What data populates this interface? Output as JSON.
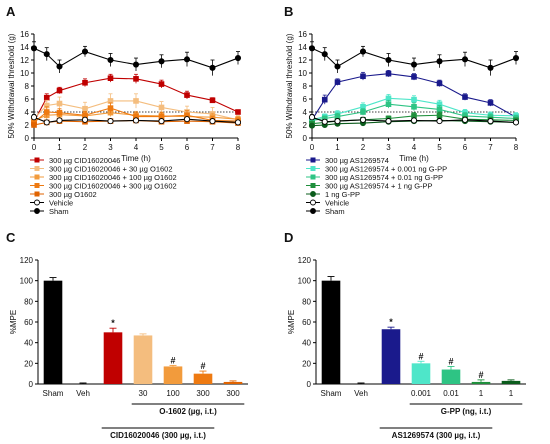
{
  "panels": {
    "A": {
      "letter": "A"
    },
    "B": {
      "letter": "B"
    },
    "C": {
      "letter": "C"
    },
    "D": {
      "letter": "D"
    }
  },
  "chart_data": [
    {
      "id": "A",
      "type": "line",
      "xlabel": "Time (h)",
      "ylabel": "50% Withdrawal threshold (g)",
      "xlim": [
        0,
        8
      ],
      "ylim": [
        0,
        16
      ],
      "xticks": [
        0,
        1,
        2,
        3,
        4,
        5,
        6,
        7,
        8
      ],
      "yticks": [
        0,
        2,
        4,
        6,
        8,
        10,
        12,
        14,
        16
      ],
      "dotted_line_y": 4,
      "x": [
        0,
        0.5,
        1,
        2,
        3,
        4,
        5,
        6,
        7,
        8
      ],
      "series": [
        {
          "name": "300 µg CID16020046",
          "color": "#c00000",
          "marker": "square",
          "filled": true,
          "values": [
            2.5,
            6.2,
            7.3,
            8.5,
            9.2,
            9.1,
            8.3,
            6.6,
            5.8,
            4.0
          ],
          "err": [
            0.4,
            0.6,
            0.5,
            0.6,
            0.6,
            0.7,
            0.6,
            0.6,
            0.4,
            0.3
          ]
        },
        {
          "name": "300 µg CID16020046 + 30 µg O1602",
          "color": "#f4bd7e",
          "marker": "square",
          "filled": true,
          "values": [
            3.0,
            5.0,
            5.3,
            4.5,
            5.7,
            5.7,
            4.7,
            4.0,
            3.7,
            2.8
          ],
          "err": [
            0.5,
            0.8,
            1.0,
            1.0,
            1.1,
            1.1,
            0.9,
            0.9,
            1.0,
            0.6
          ]
        },
        {
          "name": "300 µg CID16020046 + 100 µg O1602",
          "color": "#f29b3c",
          "marker": "square",
          "filled": true,
          "values": [
            2.7,
            3.5,
            3.6,
            3.4,
            3.9,
            3.5,
            3.4,
            3.3,
            3.2,
            2.9
          ],
          "err": [
            0.5,
            0.6,
            0.5,
            0.6,
            0.6,
            0.6,
            0.6,
            0.5,
            0.6,
            0.5
          ]
        },
        {
          "name": "300 µg CID16020046 + 300 µg O1602",
          "color": "#ee7a11",
          "marker": "square",
          "filled": true,
          "values": [
            2.4,
            4.0,
            3.9,
            3.5,
            4.6,
            3.3,
            3.3,
            3.5,
            2.7,
            2.6
          ],
          "err": [
            0.4,
            0.8,
            0.6,
            0.6,
            0.8,
            0.6,
            0.6,
            0.7,
            0.6,
            0.5
          ]
        },
        {
          "name": "300 µg O1602",
          "color": "#e06300",
          "marker": "square",
          "filled": true,
          "values": [
            2.0,
            2.4,
            2.6,
            2.5,
            2.6,
            2.7,
            2.5,
            2.6,
            2.5,
            2.3
          ],
          "err": [
            0.3,
            0.3,
            0.3,
            0.3,
            0.3,
            0.3,
            0.3,
            0.3,
            0.3,
            0.3
          ]
        },
        {
          "name": "Vehicle",
          "color": "#000000",
          "marker": "circle",
          "filled": false,
          "values": [
            3.2,
            2.4,
            2.7,
            2.8,
            2.6,
            2.7,
            2.6,
            2.9,
            2.6,
            2.4
          ],
          "err": [
            0.4,
            0.3,
            0.3,
            0.3,
            0.3,
            0.3,
            0.3,
            0.3,
            0.3,
            0.3
          ]
        },
        {
          "name": "Sham",
          "color": "#000000",
          "marker": "circle",
          "filled": true,
          "values": [
            13.8,
            12.9,
            11.0,
            13.3,
            12.0,
            11.3,
            11.8,
            12.1,
            10.8,
            12.3
          ],
          "err": [
            1.0,
            1.0,
            1.0,
            0.8,
            1.0,
            1.0,
            1.0,
            1.1,
            1.2,
            1.0
          ]
        }
      ]
    },
    {
      "id": "B",
      "type": "line",
      "xlabel": "Time (h)",
      "ylabel": "50% Withdrawal threshold (g)",
      "xlim": [
        0,
        8
      ],
      "ylim": [
        0,
        16
      ],
      "xticks": [
        0,
        1,
        2,
        3,
        4,
        5,
        6,
        7,
        8
      ],
      "yticks": [
        0,
        2,
        4,
        6,
        8,
        10,
        12,
        14,
        16
      ],
      "dotted_line_y": 4,
      "x": [
        0,
        0.5,
        1,
        2,
        3,
        4,
        5,
        6,
        7,
        8
      ],
      "series": [
        {
          "name": "300 µg AS1269574",
          "color": "#1a1a8c",
          "marker": "square",
          "filled": true,
          "values": [
            2.8,
            5.9,
            8.6,
            9.5,
            9.9,
            9.4,
            8.4,
            6.3,
            5.4,
            3.2
          ],
          "err": [
            0.4,
            0.7,
            0.5,
            0.6,
            0.5,
            0.5,
            0.5,
            0.5,
            0.5,
            0.4
          ]
        },
        {
          "name": "300 µg AS1269574 + 0.001 ng G-PP",
          "color": "#4ee6c9",
          "marker": "square",
          "filled": true,
          "values": [
            2.8,
            3.3,
            3.7,
            4.8,
            6.1,
            5.9,
            5.2,
            3.9,
            3.5,
            3.4
          ],
          "err": [
            0.4,
            0.4,
            0.5,
            0.6,
            0.6,
            0.6,
            0.6,
            0.5,
            0.5,
            0.5
          ]
        },
        {
          "name": "300 µg AS1269574 + 0.01 ng G-PP",
          "color": "#2ec484",
          "marker": "square",
          "filled": true,
          "values": [
            2.7,
            3.0,
            3.3,
            4.0,
            5.2,
            4.8,
            4.4,
            3.4,
            3.2,
            3.0
          ],
          "err": [
            0.4,
            0.4,
            0.5,
            0.5,
            0.6,
            0.6,
            0.6,
            0.5,
            0.5,
            0.5
          ]
        },
        {
          "name": "300 µg AS1269574 + 1 ng G-PP",
          "color": "#1f8f3c",
          "marker": "square",
          "filled": true,
          "values": [
            2.2,
            2.4,
            2.6,
            2.8,
            3.0,
            3.4,
            3.5,
            2.9,
            2.8,
            2.7
          ],
          "err": [
            0.3,
            0.4,
            0.4,
            0.4,
            0.4,
            0.5,
            0.5,
            0.4,
            0.4,
            0.4
          ]
        },
        {
          "name": "1 ng G-PP",
          "color": "#0b5c1c",
          "marker": "circle",
          "filled": true,
          "values": [
            1.9,
            2.0,
            2.2,
            2.3,
            2.5,
            2.6,
            2.7,
            2.6,
            2.5,
            2.4
          ],
          "err": [
            0.3,
            0.3,
            0.3,
            0.3,
            0.3,
            0.3,
            0.3,
            0.3,
            0.3,
            0.3
          ]
        },
        {
          "name": "Vehicle",
          "color": "#000000",
          "marker": "circle",
          "filled": false,
          "values": [
            3.2,
            2.5,
            2.6,
            2.8,
            2.6,
            2.7,
            2.6,
            2.8,
            2.6,
            2.4
          ],
          "err": [
            0.4,
            0.3,
            0.3,
            0.3,
            0.3,
            0.3,
            0.3,
            0.3,
            0.3,
            0.3
          ]
        },
        {
          "name": "Sham",
          "color": "#000000",
          "marker": "circle",
          "filled": true,
          "values": [
            13.8,
            12.9,
            11.0,
            13.3,
            12.0,
            11.3,
            11.8,
            12.1,
            10.8,
            12.3
          ],
          "err": [
            1.0,
            1.0,
            1.0,
            0.8,
            1.0,
            1.0,
            1.0,
            1.1,
            1.2,
            1.0
          ]
        }
      ]
    },
    {
      "id": "C",
      "type": "bar",
      "ylabel": "%MPE",
      "ylim": [
        0,
        120
      ],
      "yticks": [
        0,
        20,
        40,
        60,
        80,
        100,
        120
      ],
      "categories": [
        "Sham",
        "Veh",
        "",
        "30",
        "100",
        "300",
        "300"
      ],
      "values": [
        100,
        0,
        50,
        47,
        17,
        10,
        2
      ],
      "err": [
        3,
        1,
        4,
        1.5,
        1,
        2.5,
        1
      ],
      "colors": [
        "#000000",
        "#000000",
        "#c00000",
        "#f4bd7e",
        "#f29b3c",
        "#ee7a11",
        "#e06300"
      ],
      "marks": [
        "",
        "",
        "*",
        "",
        "#",
        "#",
        ""
      ],
      "bracket_inner": "O-1602 (µg, i.t.)",
      "bracket_outer": "CID16020046  (300 µg, i.t.)"
    },
    {
      "id": "D",
      "type": "bar",
      "ylabel": "%MPE",
      "ylim": [
        0,
        120
      ],
      "yticks": [
        0,
        20,
        40,
        60,
        80,
        100,
        120
      ],
      "categories": [
        "Sham",
        "Veh",
        "",
        "0.001",
        "0.01",
        "1",
        "1"
      ],
      "values": [
        100,
        0,
        53,
        20,
        14,
        2,
        3
      ],
      "err": [
        4,
        1,
        2,
        2,
        3,
        2,
        1
      ],
      "colors": [
        "#000000",
        "#000000",
        "#1a1a8c",
        "#4ee6c9",
        "#2ec484",
        "#1f8f3c",
        "#0b5c1c"
      ],
      "marks": [
        "",
        "",
        "*",
        "#",
        "#",
        "#",
        ""
      ],
      "bracket_inner": "G-PP (ng, i.t.)",
      "bracket_outer": "AS1269574  (300 µg, i.t.)"
    }
  ]
}
